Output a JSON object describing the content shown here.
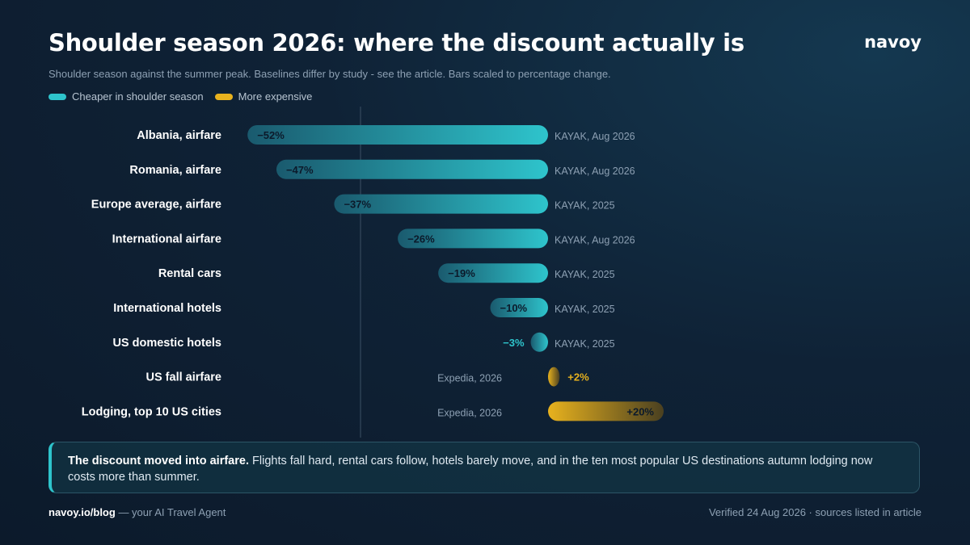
{
  "header": {
    "title": "Shoulder season 2026: where the discount actually is",
    "brand": "navoy",
    "subtitle": "Shoulder season against the summer peak. Baselines differ by study - see the article. Bars scaled to percentage change."
  },
  "legend": {
    "cheaper_label": "Cheaper in shoulder season",
    "expensive_label": "More expensive"
  },
  "colors": {
    "cheaper": "#2ec4cc",
    "cheaper_dark": "#1a5a6e",
    "expensive": "#e8b21e",
    "expensive_dark": "#4a4020"
  },
  "chart_data": {
    "type": "bar",
    "orientation": "horizontal",
    "categories": [
      "Albania, airfare",
      "Romania, airfare",
      "Europe average, airfare",
      "International airfare",
      "Rental cars",
      "International hotels",
      "US domestic hotels",
      "US fall airfare",
      "Lodging, top 10 US cities"
    ],
    "values": [
      -52,
      -47,
      -37,
      -26,
      -19,
      -10,
      -3,
      2,
      20
    ],
    "value_labels": [
      "−52%",
      "−47%",
      "−37%",
      "−26%",
      "−19%",
      "−10%",
      "−3%",
      "+2%",
      "+20%"
    ],
    "sources": [
      "KAYAK, Aug 2026",
      "KAYAK, Aug 2026",
      "KAYAK, 2025",
      "KAYAK, Aug 2026",
      "KAYAK, 2025",
      "KAYAK, 2025",
      "KAYAK, 2025",
      "Expedia, 2026",
      "Expedia, 2026"
    ],
    "unit": "%",
    "xlim": [
      -52,
      20
    ]
  },
  "callout": {
    "bold": "The discount moved into airfare.",
    "text": " Flights fall hard, rental cars follow, hotels barely move, and in the ten most popular US destinations autumn lodging now costs more than summer."
  },
  "footer": {
    "site": "navoy.io/blog",
    "tagline": " — your AI Travel Agent",
    "verified": "Verified 24 Aug 2026 · sources listed in article"
  }
}
